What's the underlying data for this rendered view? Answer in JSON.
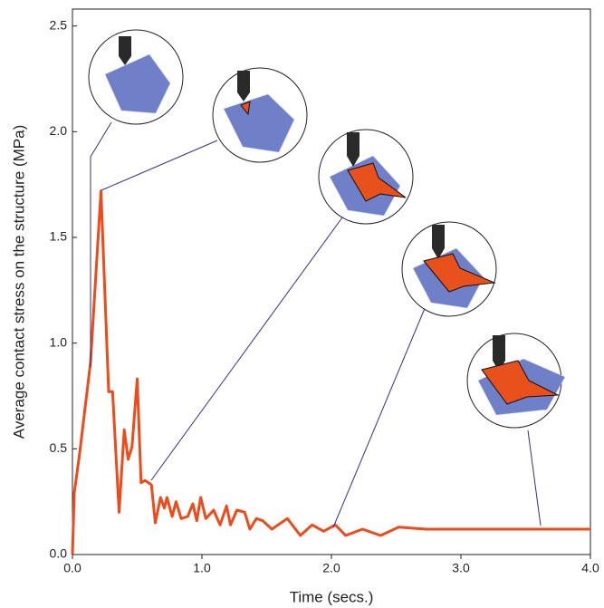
{
  "chart_data": {
    "type": "line",
    "xlabel": "Time (secs.)",
    "ylabel": "Average contact stress on the structure (MPa)",
    "x": [
      0,
      0.014,
      0.056,
      0.14,
      0.22,
      0.28,
      0.31,
      0.36,
      0.4,
      0.43,
      0.46,
      0.5,
      0.53,
      0.56,
      0.61,
      0.64,
      0.68,
      0.71,
      0.73,
      0.77,
      0.8,
      0.84,
      0.89,
      0.93,
      0.96,
      0.99,
      1.03,
      1.09,
      1.14,
      1.19,
      1.22,
      1.27,
      1.33,
      1.37,
      1.42,
      1.47,
      1.54,
      1.66,
      1.76,
      1.85,
      1.94,
      2.03,
      2.11,
      2.24,
      2.38,
      2.52,
      2.73,
      2.94,
      3.15,
      3.36,
      3.57,
      3.78,
      4.0
    ],
    "values": [
      0,
      0.29,
      0.48,
      0.91,
      1.72,
      0.77,
      0.77,
      0.2,
      0.59,
      0.45,
      0.51,
      0.83,
      0.34,
      0.35,
      0.33,
      0.15,
      0.27,
      0.22,
      0.27,
      0.18,
      0.25,
      0.17,
      0.18,
      0.24,
      0.16,
      0.27,
      0.17,
      0.21,
      0.14,
      0.23,
      0.14,
      0.21,
      0.2,
      0.12,
      0.17,
      0.16,
      0.12,
      0.17,
      0.09,
      0.14,
      0.11,
      0.14,
      0.09,
      0.12,
      0.09,
      0.13,
      0.12,
      0.12,
      0.12,
      0.12,
      0.12,
      0.12,
      0.12
    ],
    "color": "#ef4a1a",
    "xlim": [
      0,
      4.0
    ],
    "ylim": [
      0,
      2.58
    ],
    "xticks": [
      {
        "value": 0,
        "label": "0.0"
      },
      {
        "value": 1,
        "label": "1.0"
      },
      {
        "value": 2,
        "label": "2.0"
      },
      {
        "value": 3,
        "label": "3.0"
      },
      {
        "value": 4,
        "label": "4.0"
      }
    ],
    "yticks": [
      {
        "value": 0,
        "label": "0.0"
      },
      0.5,
      {
        "value": 1,
        "label": "1.0"
      },
      1.5,
      {
        "value": 2,
        "label": "2.0"
      },
      2.5
    ]
  }
}
